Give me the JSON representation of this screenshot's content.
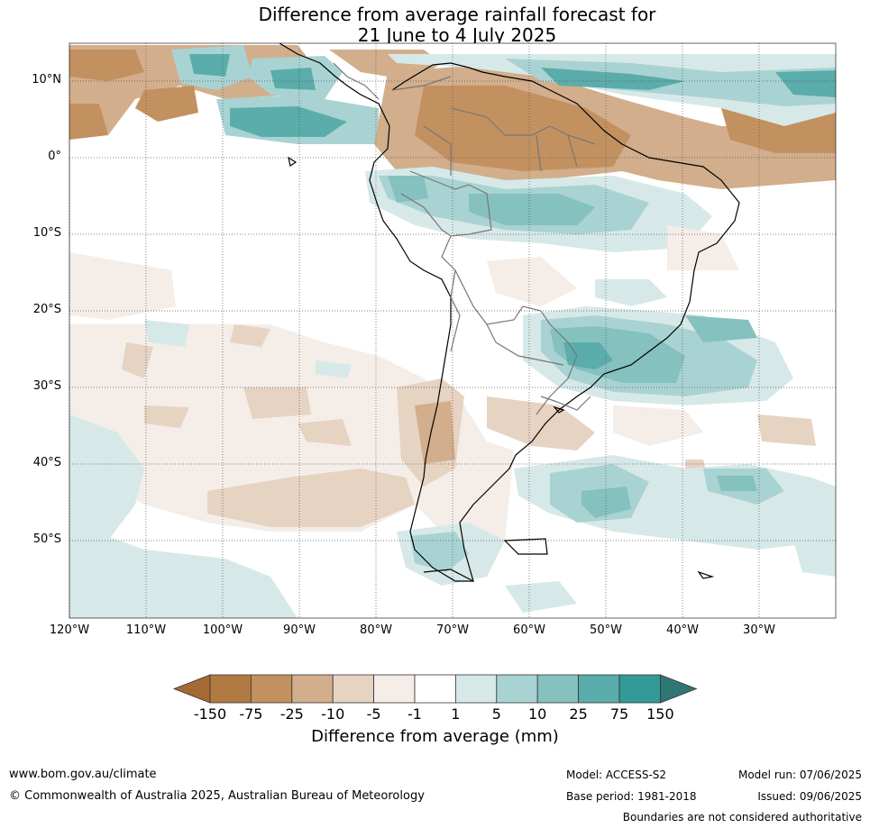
{
  "title": {
    "line1": "Difference from average rainfall forecast for",
    "line2": "21 June to 4 July 2025"
  },
  "map": {
    "lat_labels": [
      "10°N",
      "0°",
      "10°S",
      "20°S",
      "30°S",
      "40°S",
      "50°S"
    ],
    "lon_labels": [
      "120°W",
      "110°W",
      "100°W",
      "90°W",
      "80°W",
      "70°W",
      "60°W",
      "50°W",
      "40°W",
      "30°W"
    ]
  },
  "colorbar": {
    "labels": [
      "-150",
      "-75",
      "-25",
      "-10",
      "-5",
      "-1",
      "1",
      "5",
      "10",
      "25",
      "75",
      "150"
    ],
    "colors": [
      "#a46a36",
      "#b07a42",
      "#c2915f",
      "#d2ae8c",
      "#e6d3c2",
      "#f4ede8",
      "#ffffff",
      "#d6e9e8",
      "#a9d3d2",
      "#84c1bf",
      "#5aadab",
      "#339a97",
      "#2e7775"
    ],
    "title": "Difference from average (mm)"
  },
  "footer": {
    "website": "www.bom.gov.au/climate",
    "copyright": "© Commonwealth of Australia 2025, Australian Bureau of Meteorology",
    "model": "Model: ACCESS-S2",
    "base_period": "Base period: 1981-2018",
    "model_run": "Model run: 07/06/2025",
    "issued": "Issued: 09/06/2025",
    "disclaimer": "Boundaries are not considered authoritative"
  }
}
